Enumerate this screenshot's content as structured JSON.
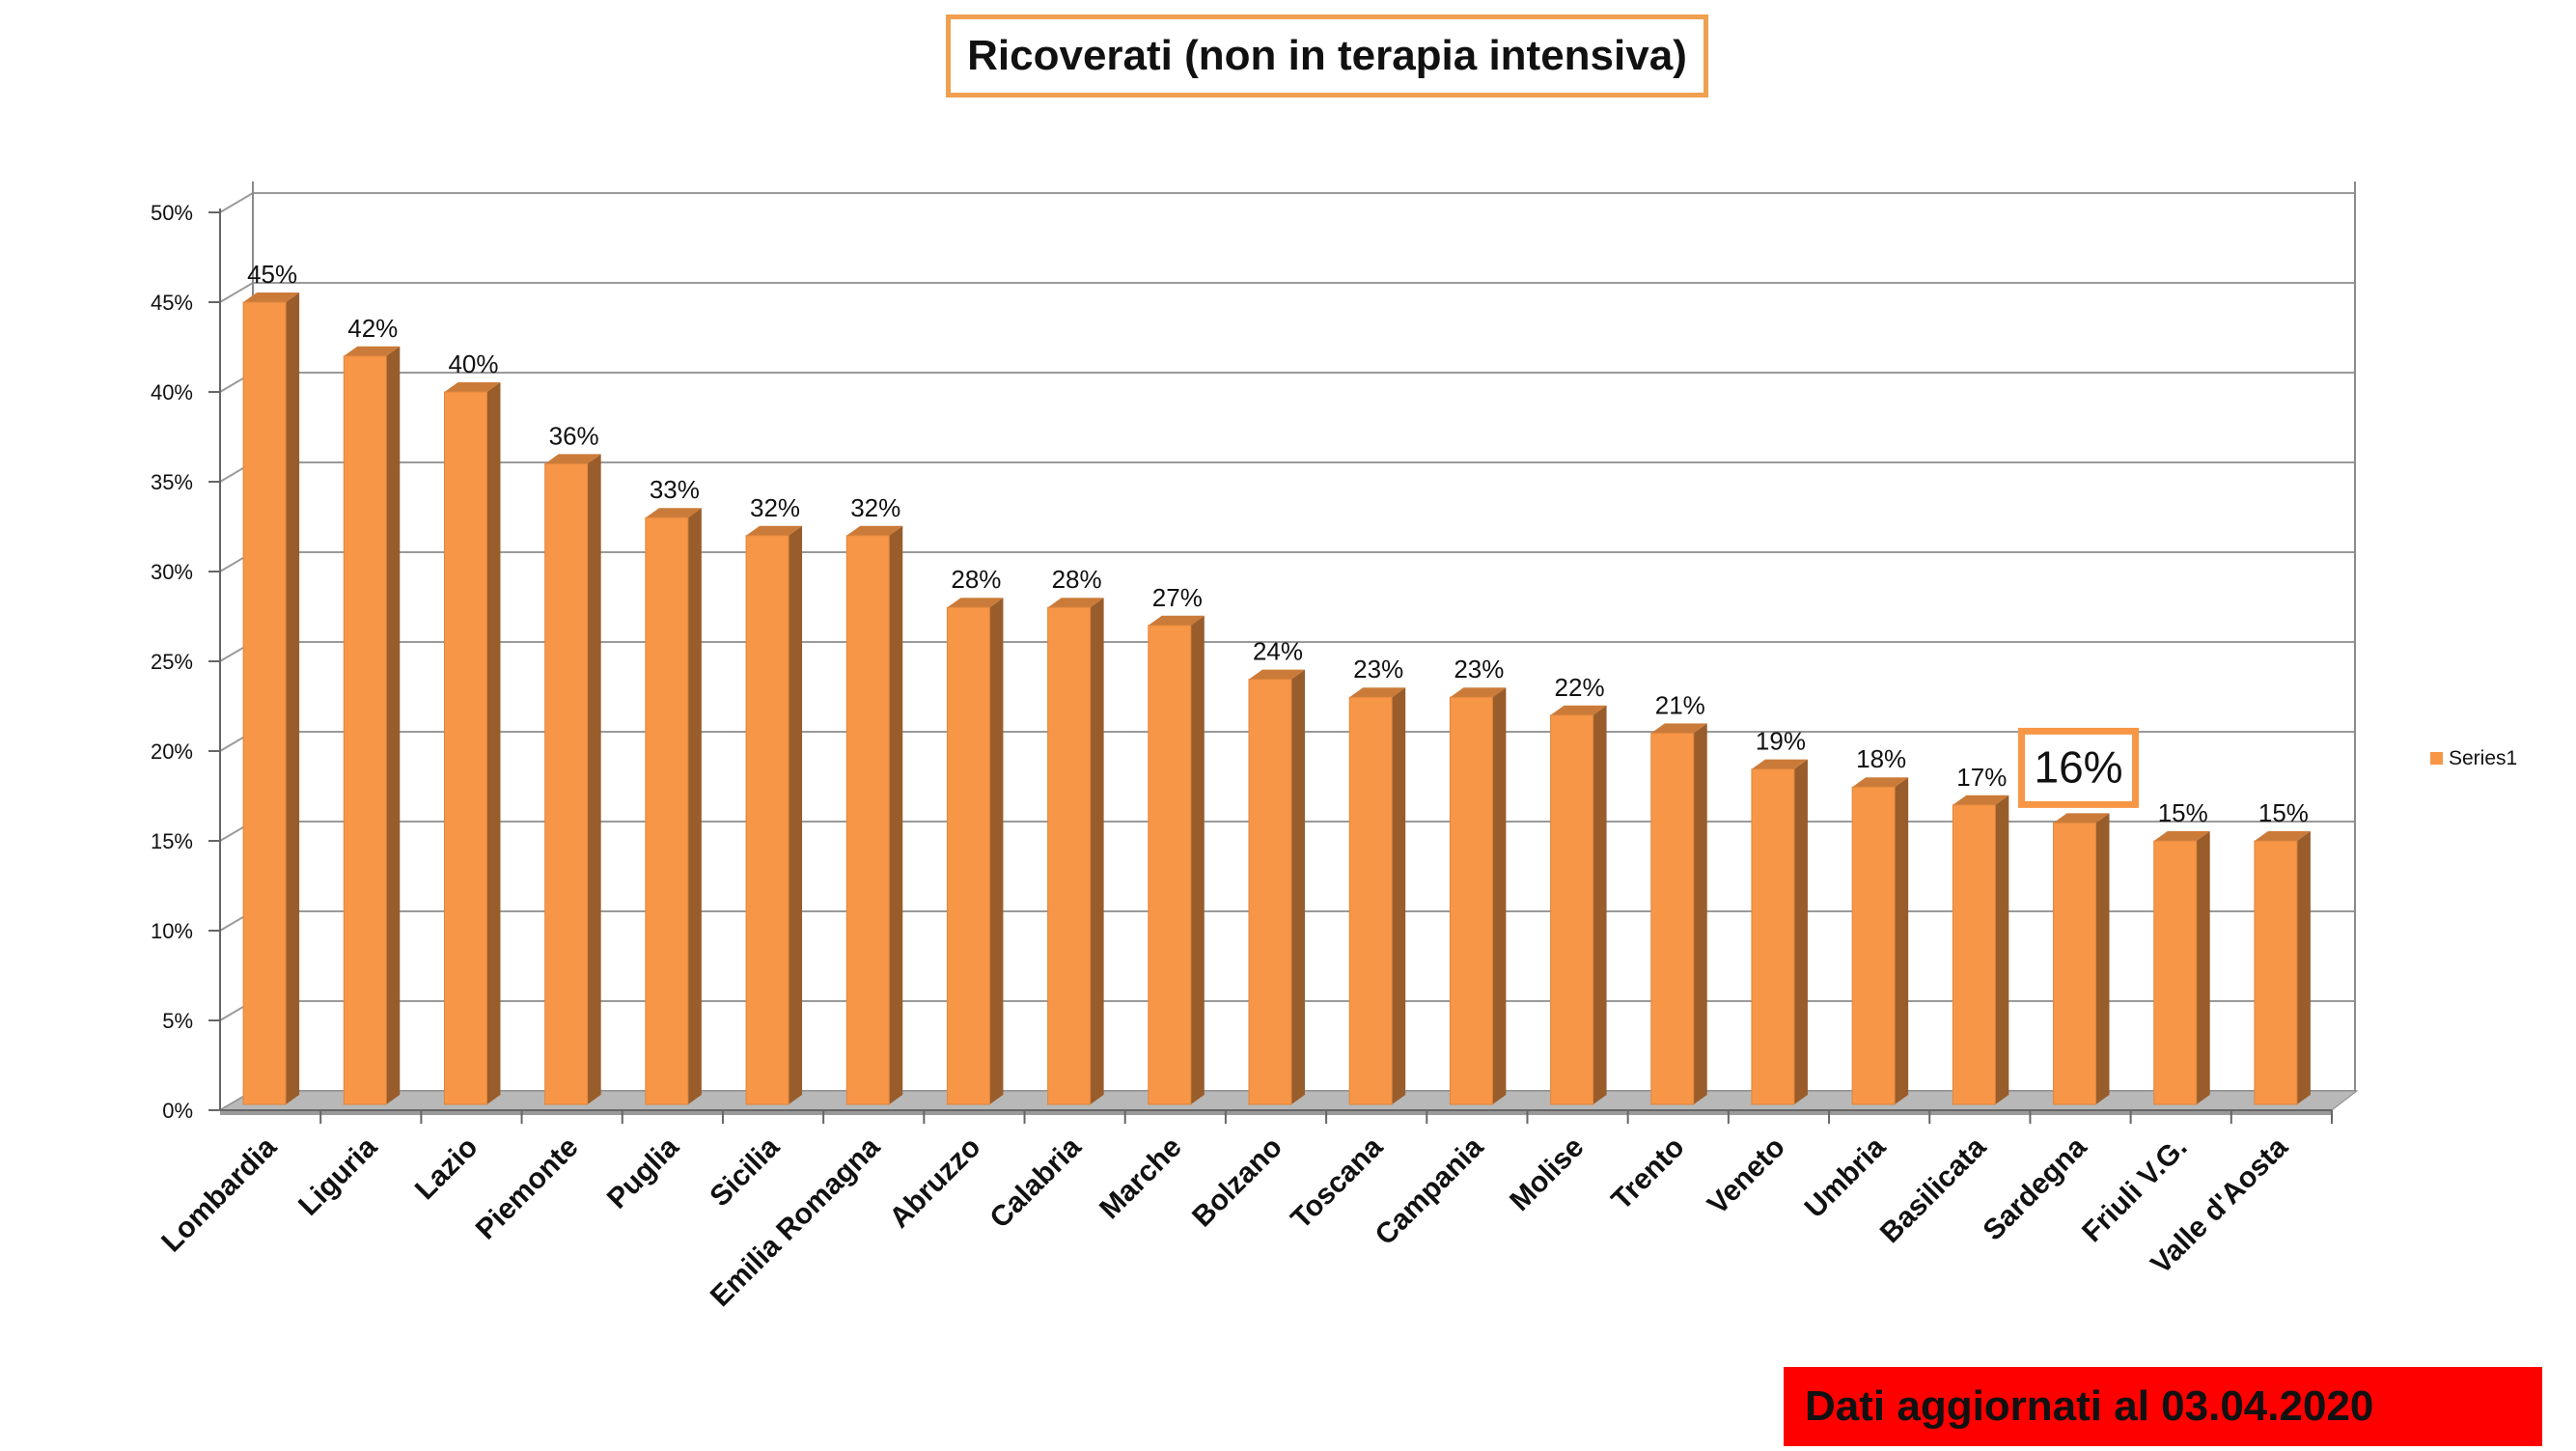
{
  "title": "Ricoverati (non in terapia intensiva)",
  "footer": "Dati aggiornati al 03.04.2020",
  "chart_data": {
    "type": "bar",
    "categories": [
      "Lombardia",
      "Liguria",
      "Lazio",
      "Piemonte",
      "Puglia",
      "Sicilia",
      "Emilia Romagna",
      "Abruzzo",
      "Calabria",
      "Marche",
      "Bolzano",
      "Toscana",
      "Campania",
      "Molise",
      "Trento",
      "Veneto",
      "Umbria",
      "Basilicata",
      "Sardegna",
      "Friuli V.G.",
      "Valle d'Aosta"
    ],
    "series": [
      {
        "name": "Series1",
        "values": [
          45,
          42,
          40,
          36,
          33,
          32,
          32,
          28,
          28,
          27,
          24,
          23,
          23,
          22,
          21,
          19,
          18,
          17,
          16,
          15,
          15
        ],
        "labels": [
          "45%",
          "42%",
          "40%",
          "36%",
          "33%",
          "32%",
          "32%",
          "28%",
          "28%",
          "27%",
          "24%",
          "23%",
          "23%",
          "22%",
          "21%",
          "19%",
          "18%",
          "17%",
          "16%",
          "15%",
          "15%"
        ]
      }
    ],
    "highlighted_category": "Sardegna",
    "ylim": [
      0,
      50
    ],
    "yticks": [
      "0%",
      "5%",
      "10%",
      "15%",
      "20%",
      "25%",
      "30%",
      "35%",
      "40%",
      "45%",
      "50%"
    ],
    "grid": true,
    "legend_position": "right",
    "bar_color": "#f79646",
    "highlight_color": "#f79646",
    "footer_color": "#ff0000"
  }
}
